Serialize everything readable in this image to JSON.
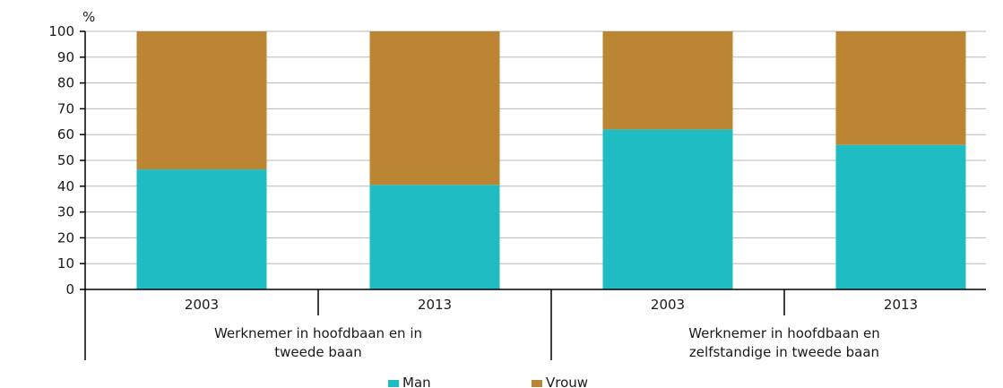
{
  "chart_data": {
    "type": "bar",
    "stacked": true,
    "y_unit": "%",
    "ylim": [
      0,
      100
    ],
    "yticks": [
      0,
      10,
      20,
      30,
      40,
      50,
      60,
      70,
      80,
      90,
      100
    ],
    "grid": true,
    "legend_placement": "bottom-center",
    "categories": [
      "2003",
      "2013",
      "2003",
      "2013"
    ],
    "groups": [
      {
        "label": "Werknemer in hoofdbaan en in tweede baan",
        "lines": [
          "Werknemer in hoofdbaan en in",
          "tweede baan"
        ],
        "span": [
          0,
          1
        ]
      },
      {
        "label": "Werknemer in hoofdbaan en zelfstandige in tweede baan",
        "lines": [
          "Werknemer in hoofdbaan en",
          "zelfstandige in tweede baan"
        ],
        "span": [
          2,
          3
        ]
      }
    ],
    "series": [
      {
        "name": "Man",
        "color": "#1fbcc4",
        "values": [
          46.5,
          40.5,
          62,
          56
        ]
      },
      {
        "name": "Vrouw",
        "color": "#bb8533",
        "values": [
          53.5,
          59.5,
          38,
          44
        ]
      }
    ]
  }
}
